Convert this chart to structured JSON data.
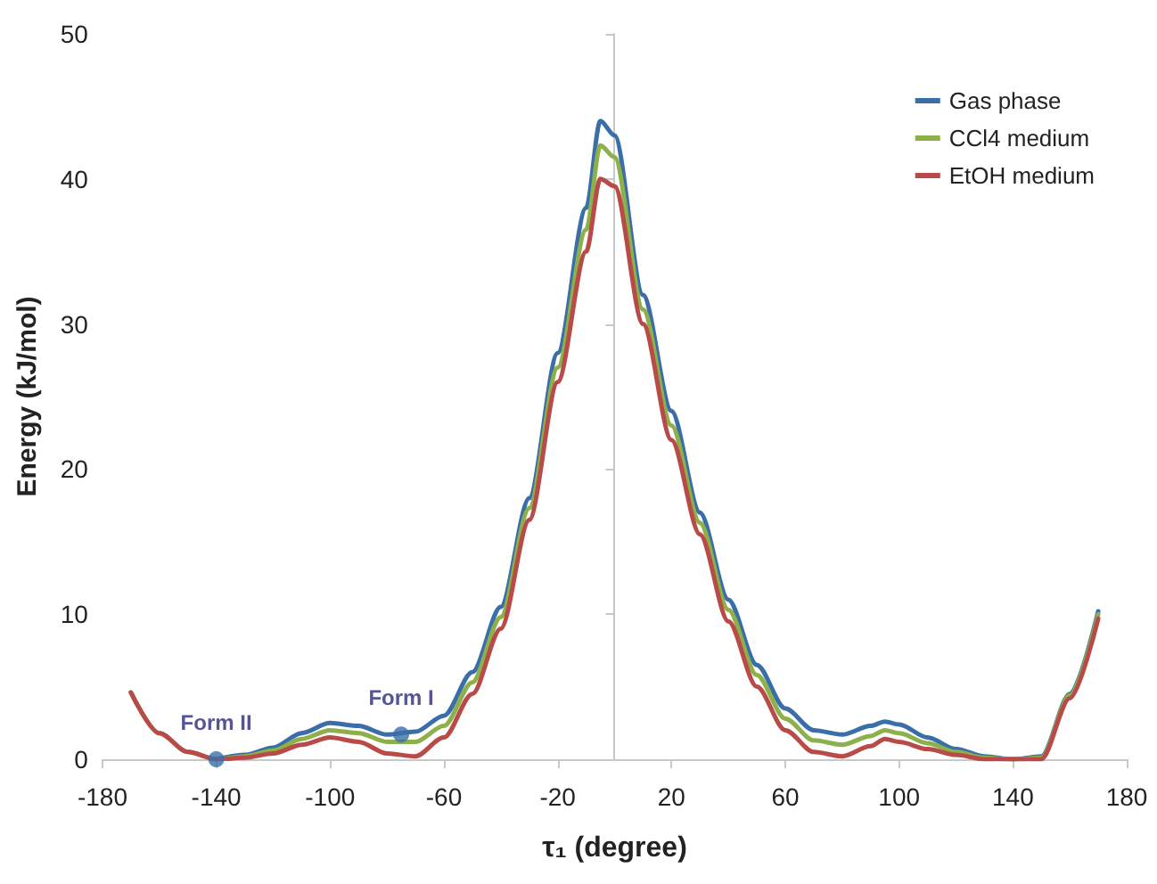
{
  "chart_data": {
    "type": "line",
    "xlabel": "τ₁ (degree)",
    "ylabel": "Energy (kJ/mol)",
    "x": [
      -170,
      -160,
      -150,
      -140,
      -130,
      -120,
      -110,
      -100,
      -90,
      -80,
      -70,
      -60,
      -50,
      -40,
      -30,
      -20,
      -10,
      -5,
      0,
      10,
      20,
      30,
      40,
      50,
      60,
      70,
      80,
      90,
      95,
      100,
      110,
      120,
      130,
      140,
      150,
      160,
      170
    ],
    "series": [
      {
        "name": "Gas phase",
        "color": "#3a6ea8",
        "values": [
          null,
          null,
          null,
          0,
          0.3,
          0.8,
          1.8,
          2.5,
          2.3,
          1.7,
          1.9,
          3,
          6,
          10.5,
          18,
          28,
          38,
          44,
          43,
          32,
          24,
          17,
          11,
          6.5,
          3.5,
          2,
          1.7,
          2.3,
          2.6,
          2.4,
          1.5,
          0.7,
          0.2,
          0,
          0.2,
          4.5,
          10.2
        ]
      },
      {
        "name": "CCl4 medium",
        "color": "#8db04a",
        "values": [
          4.6,
          1.8,
          0.5,
          0,
          0.2,
          0.6,
          1.4,
          2.0,
          1.8,
          1.2,
          1.2,
          2.3,
          5.3,
          9.8,
          17.3,
          27,
          36.5,
          42.3,
          41.5,
          31,
          23,
          16.3,
          10.3,
          5.8,
          2.8,
          1.3,
          1.0,
          1.6,
          2.0,
          1.8,
          1.1,
          0.5,
          0.1,
          0,
          0.1,
          4.4,
          10
        ]
      },
      {
        "name": "EtOH medium",
        "color": "#b84a48",
        "values": [
          4.6,
          1.8,
          0.5,
          0,
          0.1,
          0.4,
          1.0,
          1.5,
          1.2,
          0.4,
          0.2,
          1.5,
          4.5,
          9,
          16.5,
          26,
          35,
          40,
          39.5,
          30,
          22,
          15.5,
          9.5,
          5,
          2,
          0.5,
          0.2,
          0.9,
          1.4,
          1.2,
          0.7,
          0.3,
          0,
          0,
          0,
          4.2,
          9.7
        ]
      }
    ],
    "annotations": [
      {
        "text": "Form II",
        "x": -140,
        "y": 0
      },
      {
        "text": "Form I",
        "x": -75,
        "y": 1.7
      }
    ],
    "xlim": [
      -180,
      180
    ],
    "xticks": [
      -180,
      -140,
      -100,
      -60,
      -20,
      20,
      60,
      100,
      140,
      180
    ],
    "ylim": [
      0,
      50
    ],
    "yticks": [
      0,
      10,
      20,
      30,
      40,
      50
    ],
    "grid": false,
    "legend": "top right",
    "marker": "none",
    "line_style": "solid"
  }
}
